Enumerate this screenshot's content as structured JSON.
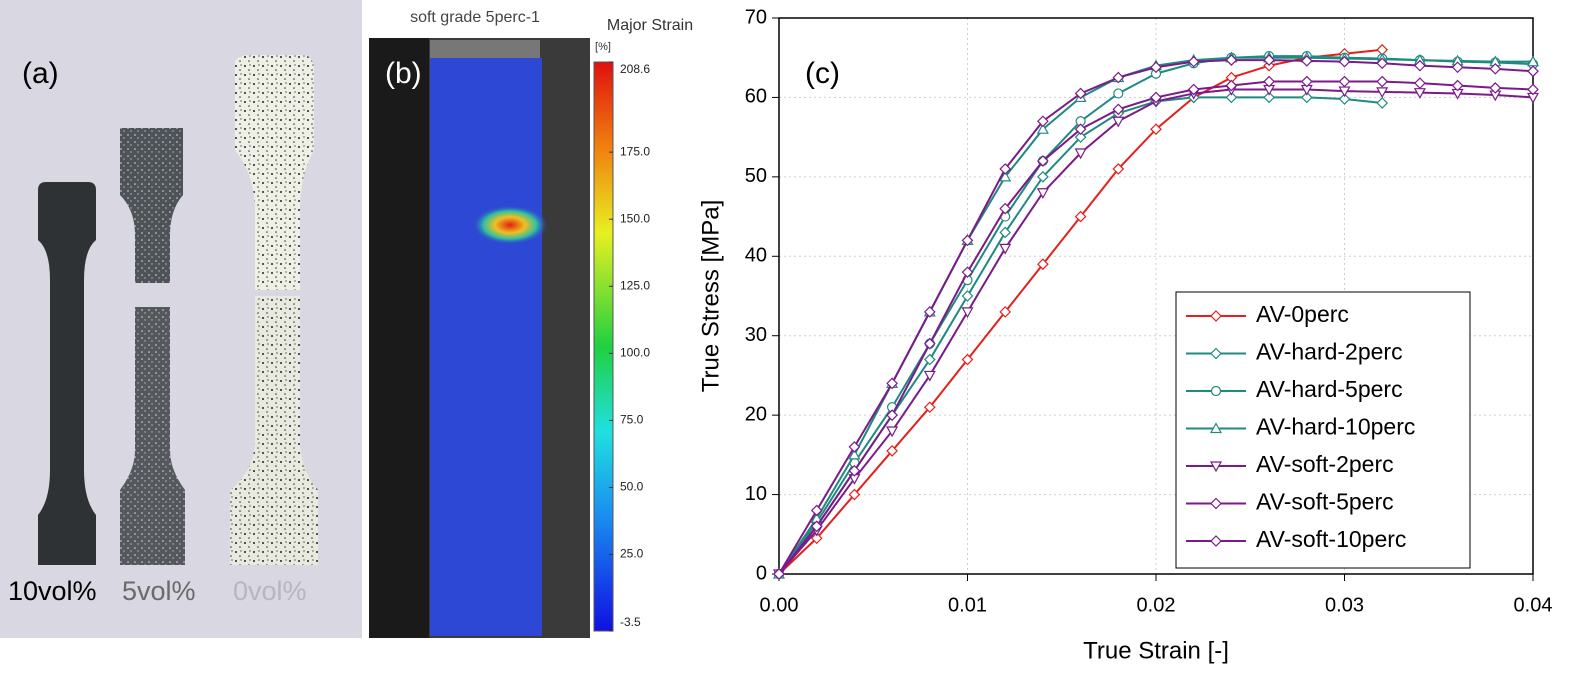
{
  "panel_a": {
    "label": "(a)",
    "specimens": [
      "10vol%",
      "5vol%",
      "0vol%"
    ]
  },
  "panel_b": {
    "label": "(b)",
    "title": "soft grade 5perc-1",
    "colorbar": {
      "title": "Major Strain",
      "unit": "[%]",
      "lim": [
        -3.5,
        208.6
      ],
      "ticks": [
        208.6,
        {
          "value": 175,
          "label": "175.0"
        },
        {
          "value": 150,
          "label": "150.0"
        },
        {
          "value": 125,
          "label": "125.0"
        },
        {
          "value": 100,
          "label": "100.0"
        },
        {
          "value": 75,
          "label": "75.0"
        },
        {
          "value": 50,
          "label": "50.0"
        },
        {
          "value": 25,
          "label": "25.0"
        },
        -3.5
      ]
    }
  },
  "chart_data": {
    "type": "line",
    "label": "(c)",
    "xlabel": "True Strain [-]",
    "ylabel": "True Stress [MPa]",
    "xlim": [
      0,
      0.04
    ],
    "xticks": [
      {
        "value": 0,
        "label": "0.00"
      },
      0.01,
      0.02,
      0.03,
      0.04
    ],
    "ylim": [
      0,
      70
    ],
    "yticks": [
      0,
      10,
      20,
      30,
      40,
      50,
      60,
      70
    ],
    "grid": true,
    "legend": "lower right",
    "series": [
      {
        "name": "AV-0perc",
        "color": "#e3211c",
        "marker": "diamond",
        "x": [
          0,
          0.002,
          0.004,
          0.006,
          0.008,
          0.01,
          0.012,
          0.014,
          0.016,
          0.018,
          0.02,
          0.022,
          0.024,
          0.026,
          0.028,
          0.03,
          0.032
        ],
        "values": [
          0,
          4.5,
          10,
          15.5,
          21,
          27,
          33,
          39,
          45,
          51,
          56,
          60,
          62.5,
          64,
          65,
          65.5,
          66
        ]
      },
      {
        "name": "AV-hard-2perc",
        "color": "#1f8a80",
        "marker": "diamond",
        "x": [
          0,
          0.002,
          0.004,
          0.006,
          0.008,
          0.01,
          0.012,
          0.014,
          0.016,
          0.018,
          0.02,
          0.022,
          0.024,
          0.026,
          0.028,
          0.03,
          0.032
        ],
        "values": [
          0,
          6,
          13,
          20,
          27,
          35,
          43,
          50,
          55,
          58,
          59.5,
          60,
          60,
          60,
          60,
          59.8,
          59.3
        ]
      },
      {
        "name": "AV-hard-5perc",
        "color": "#1f8a80",
        "marker": "circle",
        "x": [
          0,
          0.002,
          0.004,
          0.006,
          0.008,
          0.01,
          0.012,
          0.014,
          0.016,
          0.018,
          0.02,
          0.022,
          0.024,
          0.026,
          0.028,
          0.03,
          0.032,
          0.034,
          0.036,
          0.038,
          0.04
        ],
        "values": [
          0,
          6.5,
          14,
          21,
          29,
          37,
          45,
          52,
          57,
          60.5,
          63,
          64.3,
          65,
          65.2,
          65.2,
          65,
          64.9,
          64.7,
          64.5,
          64.4,
          64.2
        ]
      },
      {
        "name": "AV-hard-10perc",
        "color": "#1f8a80",
        "marker": "triangle-up",
        "x": [
          0,
          0.002,
          0.004,
          0.006,
          0.008,
          0.01,
          0.012,
          0.014,
          0.016,
          0.018,
          0.02,
          0.022,
          0.024,
          0.026,
          0.028,
          0.03,
          0.032,
          0.034,
          0.036,
          0.038,
          0.04
        ],
        "values": [
          0,
          7,
          15,
          24,
          33,
          42,
          50,
          56,
          60,
          62.5,
          64,
          64.7,
          65,
          65,
          65,
          64.9,
          64.8,
          64.7,
          64.6,
          64.5,
          64.5
        ]
      },
      {
        "name": "AV-soft-2perc",
        "color": "#7b1a8a",
        "marker": "triangle-down",
        "x": [
          0,
          0.002,
          0.004,
          0.006,
          0.008,
          0.01,
          0.012,
          0.014,
          0.016,
          0.018,
          0.02,
          0.022,
          0.024,
          0.026,
          0.028,
          0.03,
          0.032,
          0.034,
          0.036,
          0.038,
          0.04
        ],
        "values": [
          0,
          5.5,
          12,
          18,
          25,
          33,
          41,
          48,
          53,
          57,
          59.5,
          60.5,
          61,
          61,
          61,
          60.8,
          60.7,
          60.6,
          60.5,
          60.3,
          60
        ]
      },
      {
        "name": "AV-soft-5perc",
        "color": "#7b1a8a",
        "marker": "diamond",
        "x": [
          0,
          0.002,
          0.004,
          0.006,
          0.008,
          0.01,
          0.012,
          0.014,
          0.016,
          0.018,
          0.02,
          0.022,
          0.024,
          0.026,
          0.028,
          0.03,
          0.032,
          0.034,
          0.036,
          0.038,
          0.04
        ],
        "values": [
          0,
          6,
          13,
          20,
          29,
          38,
          46,
          52,
          56,
          58.5,
          60,
          61,
          61.5,
          62,
          62,
          62,
          62,
          61.8,
          61.5,
          61.2,
          61
        ]
      },
      {
        "name": "AV-soft-10perc",
        "color": "#7b1a8a",
        "marker": "diamond",
        "x": [
          0,
          0.002,
          0.004,
          0.006,
          0.008,
          0.01,
          0.012,
          0.014,
          0.016,
          0.018,
          0.02,
          0.022,
          0.024,
          0.026,
          0.028,
          0.03,
          0.032,
          0.034,
          0.036,
          0.038,
          0.04
        ],
        "values": [
          0,
          8,
          16,
          24,
          33,
          42,
          51,
          57,
          60.5,
          62.5,
          63.8,
          64.5,
          64.7,
          64.7,
          64.6,
          64.5,
          64.3,
          64,
          63.8,
          63.6,
          63.3
        ]
      }
    ]
  }
}
